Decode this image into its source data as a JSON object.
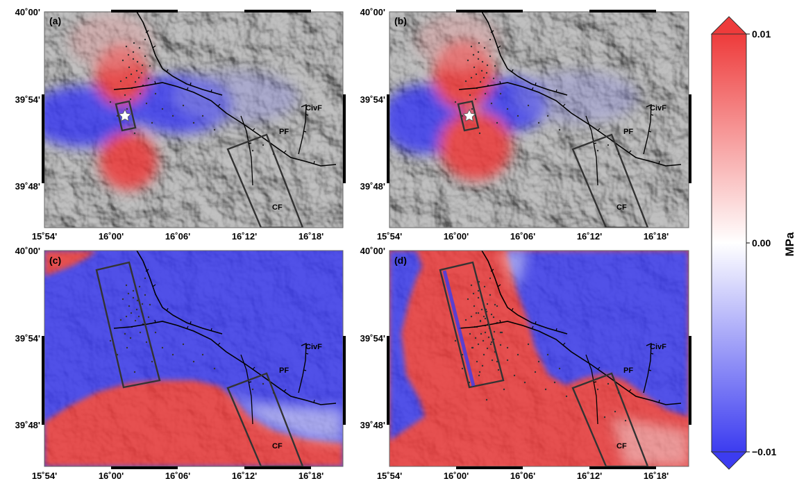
{
  "panels": [
    {
      "label": "(a)",
      "fault_labels": {
        "civ": "CivF",
        "pf": "PF",
        "cf": "CF"
      }
    },
    {
      "label": "(b)",
      "fault_labels": {
        "civ": "CivF",
        "pf": "PF",
        "cf": "CF"
      }
    },
    {
      "label": "(c)",
      "fault_labels": {
        "civ": "CivF",
        "pf": "PF",
        "cf": "CF"
      }
    },
    {
      "label": "(d)",
      "fault_labels": {
        "civ": "CivF",
        "pf": "PF",
        "cf": "CF"
      }
    }
  ],
  "axes": {
    "lat_ticks": [
      "40˚00'",
      "39˚54'",
      "39˚48'"
    ],
    "lon_ticks": [
      "15˚54'",
      "16˚00'",
      "16˚06'",
      "16˚12'",
      "16˚18'"
    ]
  },
  "colorbar": {
    "unit": "MPa",
    "max_label": "0.01",
    "mid_label": "0.00",
    "min_label": "−0.01",
    "min": -0.01,
    "max": 0.01,
    "colors": {
      "positive": "#ee3b3b",
      "zero": "#ffffff",
      "negative": "#3c3cf0"
    }
  },
  "map_colors": {
    "red": "#ee3b3b",
    "blue": "#3c3cf0",
    "hillshade": "#b5b5b5",
    "fault": "#000000",
    "source_box": "#333333"
  }
}
